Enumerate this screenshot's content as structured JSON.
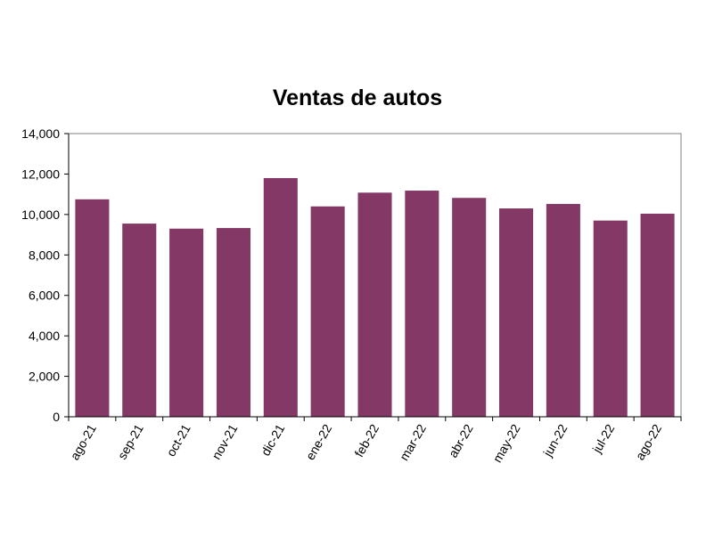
{
  "chart_data": {
    "type": "bar",
    "title": "Ventas de autos",
    "xlabel": "",
    "ylabel": "",
    "categories": [
      "ago-21",
      "sep-21",
      "oct-21",
      "nov-21",
      "dic-21",
      "ene-22",
      "feb-22",
      "mar-22",
      "abr-22",
      "may-22",
      "jun-22",
      "jul-22",
      "ago-22"
    ],
    "values": [
      10750,
      9550,
      9300,
      9330,
      11800,
      10400,
      11080,
      11180,
      10820,
      10300,
      10520,
      9700,
      10040
    ],
    "ylim": [
      0,
      14000
    ],
    "yticks": [
      0,
      2000,
      4000,
      6000,
      8000,
      10000,
      12000,
      14000
    ],
    "ytick_labels": [
      "0",
      "2,000",
      "4,000",
      "6,000",
      "8,000",
      "10,000",
      "12,000",
      "14,000"
    ],
    "bar_color": "#843865",
    "grid": false,
    "legend": "none"
  }
}
